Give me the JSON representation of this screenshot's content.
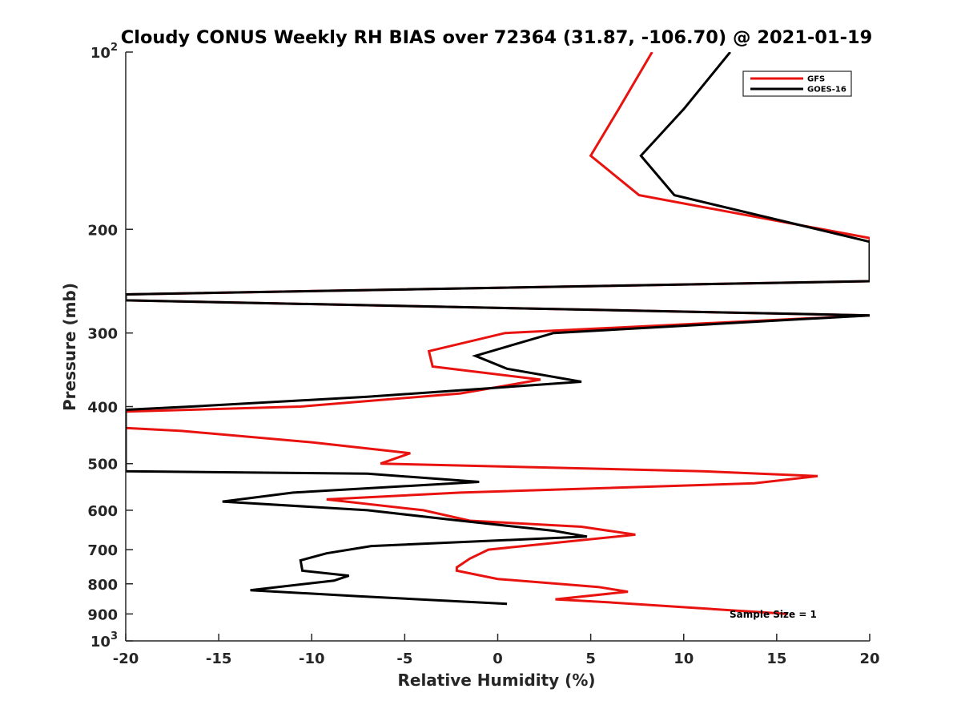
{
  "chart_data": {
    "type": "line",
    "title": "Cloudy CONUS Weekly RH BIAS over 72364 (31.87, -106.70) @ 2021-01-19",
    "xlabel": "Relative Humidity (%)",
    "ylabel": "Pressure (mb)",
    "xlim": [
      -20,
      20
    ],
    "ylim": [
      100,
      1000
    ],
    "yscale": "log",
    "y_reversed": true,
    "x_ticks": [
      "-20",
      "-15",
      "-10",
      "-5",
      "0",
      "5",
      "10",
      "15",
      "20"
    ],
    "y_ticks": [
      {
        "value": 100,
        "base": "10",
        "exp": "2"
      },
      {
        "value": 200,
        "label": "200"
      },
      {
        "value": 300,
        "label": "300"
      },
      {
        "value": 400,
        "label": "400"
      },
      {
        "value": 500,
        "label": "500"
      },
      {
        "value": 600,
        "label": "600"
      },
      {
        "value": 700,
        "label": "700"
      },
      {
        "value": 800,
        "label": "800"
      },
      {
        "value": 900,
        "label": "900"
      },
      {
        "value": 1000,
        "base": "10",
        "exp": "3"
      }
    ],
    "grid": false,
    "legend_position": "top-right",
    "annotation": "Sample Size = 1",
    "series": [
      {
        "name": "GFS",
        "color": "#e8120f",
        "points": [
          [
            8.3,
            100
          ],
          [
            6.5,
            125
          ],
          [
            5.0,
            150
          ],
          [
            7.6,
            175
          ],
          [
            20.0,
            207
          ],
          [
            20.0,
            245
          ],
          [
            -20.0,
            258
          ],
          [
            -20.0,
            264
          ],
          [
            20.0,
            280
          ],
          [
            0.4,
            300
          ],
          [
            -3.7,
            322
          ],
          [
            -3.5,
            342
          ],
          [
            2.3,
            360
          ],
          [
            -2.0,
            380
          ],
          [
            -10.6,
            400
          ],
          [
            -20.0,
            408
          ],
          [
            -20.0,
            435
          ],
          [
            -17.0,
            440
          ],
          [
            -10.0,
            460
          ],
          [
            -6.0,
            475
          ],
          [
            -4.7,
            480
          ],
          [
            -6.3,
            500
          ],
          [
            11.0,
            515
          ],
          [
            17.2,
            525
          ],
          [
            13.8,
            540
          ],
          [
            -2.0,
            560
          ],
          [
            -9.2,
            575
          ],
          [
            -4.0,
            600
          ],
          [
            -1.5,
            625
          ],
          [
            4.5,
            640
          ],
          [
            7.4,
            660
          ],
          [
            -0.5,
            700
          ],
          [
            -1.5,
            725
          ],
          [
            -2.2,
            750
          ],
          [
            -2.2,
            760
          ],
          [
            0.0,
            785
          ],
          [
            5.4,
            810
          ],
          [
            7.0,
            825
          ],
          [
            3.1,
            850
          ],
          [
            6.0,
            860
          ],
          [
            15.6,
            900
          ]
        ]
      },
      {
        "name": "GOES-16",
        "color": "#000000",
        "points": [
          [
            12.5,
            100
          ],
          [
            10.0,
            125
          ],
          [
            7.7,
            150
          ],
          [
            9.5,
            175
          ],
          [
            20.0,
            210
          ],
          [
            20.0,
            245
          ],
          [
            -20.0,
            258
          ],
          [
            -20.0,
            264
          ],
          [
            20.0,
            280
          ],
          [
            3.0,
            300
          ],
          [
            -1.2,
            328
          ],
          [
            0.5,
            345
          ],
          [
            4.5,
            363
          ],
          [
            -7.0,
            385
          ],
          [
            -16.5,
            400
          ],
          [
            -20.0,
            405
          ],
          [
            -20.0,
            515
          ],
          [
            -7.0,
            520
          ],
          [
            -1.0,
            537
          ],
          [
            -11.0,
            560
          ],
          [
            -14.8,
            580
          ],
          [
            -7.0,
            600
          ],
          [
            -2.0,
            625
          ],
          [
            3.0,
            650
          ],
          [
            4.8,
            665
          ],
          [
            -6.8,
            690
          ],
          [
            -9.2,
            710
          ],
          [
            -10.6,
            730
          ],
          [
            -10.5,
            760
          ],
          [
            -8.0,
            775
          ],
          [
            -8.8,
            790
          ],
          [
            -13.3,
            820
          ],
          [
            -7.5,
            840
          ],
          [
            0.5,
            865
          ]
        ]
      }
    ]
  }
}
